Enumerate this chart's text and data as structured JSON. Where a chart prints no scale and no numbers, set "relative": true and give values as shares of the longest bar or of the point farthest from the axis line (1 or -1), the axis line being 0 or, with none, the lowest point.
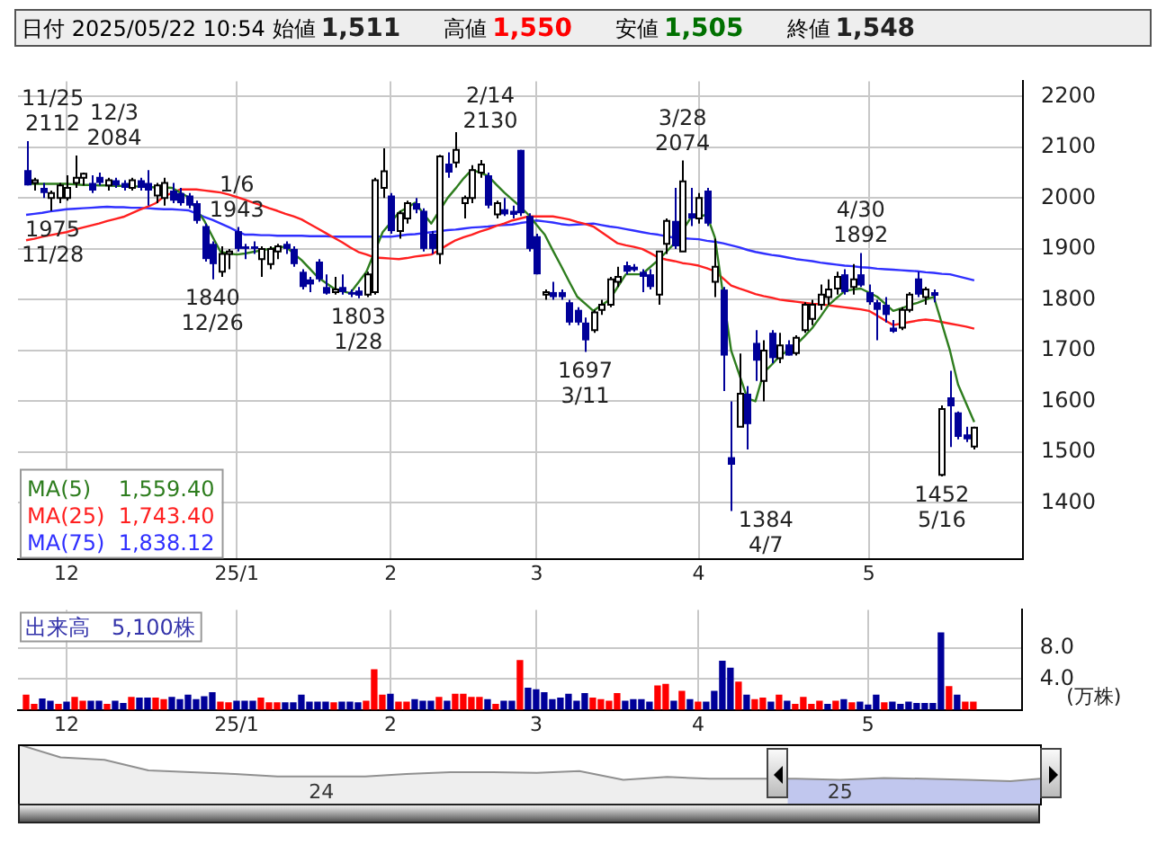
{
  "chart_data": [
    {
      "type": "candlestick",
      "title": "日付 2025/05/22 10:54",
      "annotations": [
        "始値 1,511",
        "高値 1,550",
        "安値 1,505",
        "終値 1,548"
      ],
      "categories": [
        null,
        null,
        null,
        null,
        null,
        "12",
        null,
        null,
        null,
        null,
        null,
        null,
        null,
        null,
        null,
        null,
        null,
        null,
        null,
        null,
        null,
        null,
        null,
        null,
        null,
        null,
        "25/1",
        null,
        null,
        null,
        null,
        null,
        null,
        null,
        null,
        null,
        null,
        null,
        null,
        null,
        null,
        null,
        null,
        null,
        null,
        "2",
        null,
        null,
        null,
        null,
        null,
        null,
        null,
        null,
        null,
        null,
        null,
        null,
        null,
        null,
        null,
        null,
        null,
        "3",
        null,
        null,
        null,
        null,
        null,
        null,
        null,
        null,
        null,
        null,
        null,
        null,
        null,
        null,
        null,
        null,
        null,
        null,
        null,
        "4",
        null,
        null,
        null,
        null,
        null,
        null,
        null,
        null,
        null,
        null,
        null,
        null,
        null,
        null,
        null,
        null,
        null,
        null,
        null,
        null,
        "5",
        null,
        null,
        null,
        null,
        null,
        null,
        null,
        null,
        null,
        null,
        null,
        null,
        null
      ],
      "series": [
        {
          "type": "candlestick",
          "colors": [
            "#000099",
            "#ffffff",
            "#000099",
            "#ffffff",
            "#ffffff",
            "#ffffff",
            "#ffffff",
            "#ffffff",
            "#000099",
            "#000099",
            "#ffffff",
            "#000099",
            "#000099",
            "#ffffff",
            "#000099",
            "#000099",
            "#ffffff",
            "#ffffff",
            "#000099",
            "#000099",
            "#000099",
            "#000099",
            "#000099",
            "#000099",
            "#ffffff",
            "#ffffff",
            "#000099",
            "#000099",
            "#000099",
            "#ffffff",
            "#ffffff",
            "#ffffff",
            "#000099",
            "#000099",
            "#000099",
            "#000099",
            "#000099",
            "#000099",
            "#ffffff",
            "#000099",
            "#000099",
            "#000099",
            "#ffffff",
            "#ffffff",
            "#ffffff",
            "#000099",
            "#ffffff",
            "#ffffff",
            "#000099",
            "#000099",
            "#000099",
            "#ffffff",
            "#000099",
            "#ffffff",
            "#ffffff",
            "#ffffff",
            "#ffffff",
            "#000099",
            "#ffffff",
            "#000099",
            "#000099",
            "#000099",
            "#000099",
            "#000099",
            "#ffffff",
            "#000099",
            "#000099",
            "#000099",
            "#000099",
            "#000099",
            "#ffffff",
            "#ffffff",
            "#ffffff",
            "#ffffff",
            "#000099",
            "#000099",
            "#000099",
            "#000099",
            "#ffffff",
            "#ffffff",
            "#000099",
            "#ffffff",
            "#000099",
            "#ffffff",
            "#000099",
            "#ffffff",
            "#000099",
            "#000099",
            "#ffffff",
            "#000099",
            "#000099",
            "#ffffff",
            "#000099",
            "#ffffff",
            "#000099",
            "#ffffff",
            "#ffffff",
            "#ffffff",
            "#ffffff",
            "#ffffff",
            "#ffffff",
            "#000099",
            "#ffffff",
            "#000099",
            "#000099",
            "#000099",
            "#000099",
            "#000099",
            "#ffffff",
            "#ffffff",
            "#000099",
            "#ffffff",
            "#000099",
            "#ffffff",
            "#000099",
            "#000099",
            "#000099",
            "#ffffff"
          ],
          "value_labels": [
            "11/25\n2112",
            null,
            null,
            "1975\n11/28",
            null,
            null,
            "12/3\n2084",
            null,
            null,
            null,
            null,
            null,
            null,
            null,
            null,
            null,
            null,
            null,
            null,
            null,
            null,
            null,
            null,
            "1840\n12/26",
            null,
            null,
            "1/6\n1943",
            null,
            null,
            null,
            null,
            null,
            null,
            null,
            null,
            null,
            null,
            null,
            null,
            null,
            null,
            "1803\n1/28",
            null,
            null,
            null,
            null,
            null,
            null,
            null,
            null,
            null,
            null,
            null,
            "2/14\n2130",
            null,
            null,
            null,
            null,
            null,
            null,
            null,
            null,
            null,
            null,
            null,
            null,
            null,
            null,
            null,
            "1697\n3/11",
            null,
            null,
            null,
            null,
            null,
            null,
            null,
            null,
            null,
            null,
            null,
            "3/28\n2074",
            null,
            null,
            null,
            null,
            null,
            "1384\n4/7",
            null,
            null,
            null,
            null,
            null,
            null,
            null,
            null,
            null,
            null,
            null,
            null,
            null,
            null,
            null,
            "4/30\n1892",
            null,
            null,
            null,
            null,
            null,
            null,
            null,
            null,
            null,
            "1452\n5/16",
            null,
            null,
            null,
            null
          ],
          "ohlc": [
            [
              2055,
              2112,
              2025,
              2025
            ],
            [
              2030,
              2040,
              2015,
              2035
            ],
            [
              2020,
              2030,
              2000,
              2010
            ],
            [
              2000,
              2015,
              1975,
              2010
            ],
            [
              2000,
              2030,
              1990,
              2025
            ],
            [
              2000,
              2045,
              1995,
              2020
            ],
            [
              2030,
              2084,
              2020,
              2040
            ],
            [
              2040,
              2050,
              2025,
              2048
            ],
            [
              2030,
              2045,
              2010,
              2015
            ],
            [
              2042,
              2050,
              2025,
              2030
            ],
            [
              2025,
              2040,
              2015,
              2035
            ],
            [
              2035,
              2040,
              2020,
              2025
            ],
            [
              2030,
              2035,
              2015,
              2020
            ],
            [
              2020,
              2040,
              2015,
              2035
            ],
            [
              2035,
              2040,
              2015,
              2020
            ],
            [
              2030,
              2055,
              1985,
              2015
            ],
            [
              2005,
              2030,
              1990,
              2025
            ],
            [
              2000,
              2040,
              1985,
              2030
            ],
            [
              2015,
              2030,
              1990,
              1995
            ],
            [
              2010,
              2020,
              1985,
              1990
            ],
            [
              2005,
              2010,
              1980,
              1985
            ],
            [
              1990,
              1995,
              1950,
              1955
            ],
            [
              1945,
              1950,
              1875,
              1880
            ],
            [
              1910,
              1915,
              1840,
              1870
            ],
            [
              1855,
              1905,
              1845,
              1890
            ],
            [
              1890,
              1900,
              1860,
              1895
            ],
            [
              1935,
              1943,
              1895,
              1900
            ],
            [
              1905,
              1910,
              1880,
              1900
            ],
            [
              1905,
              1915,
              1890,
              1900
            ],
            [
              1880,
              1905,
              1845,
              1900
            ],
            [
              1870,
              1905,
              1860,
              1900
            ],
            [
              1895,
              1910,
              1880,
              1905
            ],
            [
              1910,
              1915,
              1890,
              1900
            ],
            [
              1900,
              1905,
              1865,
              1870
            ],
            [
              1855,
              1860,
              1820,
              1825
            ],
            [
              1840,
              1845,
              1815,
              1830
            ],
            [
              1875,
              1880,
              1835,
              1840
            ],
            [
              1825,
              1850,
              1810,
              1812
            ],
            [
              1815,
              1845,
              1810,
              1820
            ],
            [
              1825,
              1850,
              1810,
              1815
            ],
            [
              1815,
              1820,
              1805,
              1810
            ],
            [
              1818,
              1825,
              1803,
              1808
            ],
            [
              1810,
              1855,
              1805,
              1850
            ],
            [
              1815,
              2040,
              1810,
              2035
            ],
            [
              2020,
              2098,
              2000,
              2053
            ],
            [
              2005,
              2010,
              1930,
              1935
            ],
            [
              1935,
              1975,
              1920,
              1970
            ],
            [
              1960,
              1995,
              1950,
              1990
            ],
            [
              1990,
              2000,
              1970,
              1977
            ],
            [
              1975,
              1980,
              1895,
              1900
            ],
            [
              1930,
              1935,
              1890,
              1900
            ],
            [
              1890,
              2085,
              1870,
              2082
            ],
            [
              2068,
              2090,
              2040,
              2050
            ],
            [
              2070,
              2130,
              2060,
              2095
            ],
            [
              1990,
              2005,
              1960,
              2000
            ],
            [
              2000,
              2065,
              1990,
              2055
            ],
            [
              2050,
              2075,
              2040,
              2066
            ],
            [
              2045,
              2050,
              1980,
              1985
            ],
            [
              1968,
              1995,
              1960,
              1990
            ],
            [
              1978,
              2000,
              1965,
              1968
            ],
            [
              1975,
              1985,
              1960,
              1967
            ],
            [
              2095,
              2095,
              1965,
              1970
            ],
            [
              1965,
              1970,
              1895,
              1900
            ],
            [
              1925,
              1930,
              1850,
              1850
            ],
            [
              1810,
              1820,
              1800,
              1815
            ],
            [
              1815,
              1835,
              1800,
              1805
            ],
            [
              1815,
              1820,
              1800,
              1805
            ],
            [
              1795,
              1800,
              1750,
              1755
            ],
            [
              1780,
              1785,
              1750,
              1755
            ],
            [
              1755,
              1765,
              1697,
              1720
            ],
            [
              1740,
              1780,
              1735,
              1775
            ],
            [
              1780,
              1800,
              1770,
              1790
            ],
            [
              1790,
              1845,
              1785,
              1840
            ],
            [
              1835,
              1865,
              1825,
              1845
            ],
            [
              1868,
              1875,
              1850,
              1855
            ],
            [
              1865,
              1870,
              1855,
              1858
            ],
            [
              1855,
              1860,
              1815,
              1845
            ],
            [
              1850,
              1860,
              1820,
              1825
            ],
            [
              1810,
              1895,
              1790,
              1895
            ],
            [
              1910,
              1960,
              1890,
              1955
            ],
            [
              1955,
              2020,
              1900,
              1905
            ],
            [
              1895,
              2074,
              1895,
              2033
            ],
            [
              1970,
              2020,
              1945,
              1960
            ],
            [
              1960,
              2010,
              1950,
              2000
            ],
            [
              2015,
              2020,
              1945,
              1950
            ],
            [
              1835,
              1920,
              1805,
              1865
            ],
            [
              1820,
              1825,
              1620,
              1690
            ],
            [
              1490,
              1600,
              1384,
              1475
            ],
            [
              1550,
              1694,
              1550,
              1615
            ],
            [
              1615,
              1630,
              1505,
              1555
            ],
            [
              1715,
              1740,
              1640,
              1680
            ],
            [
              1640,
              1720,
              1600,
              1700
            ],
            [
              1735,
              1740,
              1675,
              1685
            ],
            [
              1685,
              1735,
              1675,
              1710
            ],
            [
              1712,
              1720,
              1690,
              1690
            ],
            [
              1695,
              1730,
              1690,
              1725
            ],
            [
              1740,
              1795,
              1735,
              1790
            ],
            [
              1762,
              1800,
              1750,
              1790
            ],
            [
              1790,
              1830,
              1780,
              1810
            ],
            [
              1805,
              1840,
              1790,
              1820
            ],
            [
              1822,
              1855,
              1810,
              1845
            ],
            [
              1850,
              1860,
              1810,
              1815
            ],
            [
              1825,
              1870,
              1810,
              1840
            ],
            [
              1850,
              1892,
              1825,
              1828
            ],
            [
              1815,
              1830,
              1790,
              1795
            ],
            [
              1795,
              1800,
              1720,
              1780
            ],
            [
              1790,
              1805,
              1755,
              1770
            ],
            [
              1745,
              1760,
              1735,
              1737
            ],
            [
              1745,
              1785,
              1740,
              1780
            ],
            [
              1780,
              1815,
              1775,
              1810
            ],
            [
              1842,
              1855,
              1805,
              1810
            ],
            [
              1805,
              1825,
              1790,
              1820
            ],
            [
              1815,
              1820,
              1795,
              1808
            ],
            [
              1455,
              1592,
              1452,
              1585
            ],
            [
              1608,
              1660,
              1510,
              1590
            ],
            [
              1578,
              1580,
              1525,
              1530
            ],
            [
              1535,
              1550,
              1520,
              1525
            ],
            [
              1511,
              1550,
              1505,
              1548
            ]
          ]
        },
        {
          "type": "line",
          "name": "MA(5)    1,559.40",
          "color": "#2e7d1e",
          "values": [
            2028,
            2028,
            2028,
            2028,
            2028,
            2028,
            2027,
            2026,
            2026,
            2025,
            2025,
            2024,
            2024,
            2023,
            2023,
            2022,
            2021,
            2021,
            2020,
            2011,
            2002,
            1978,
            1955,
            1924,
            1894,
            1891,
            1889,
            1891,
            1894,
            1897,
            1900,
            1902,
            1905,
            1891,
            1878,
            1861,
            1844,
            1833,
            1822,
            1817,
            1813,
            1834,
            1855,
            1894,
            1933,
            1952,
            1972,
            1981,
            1991,
            1970,
            1950,
            1975,
            2000,
            2019,
            2039,
            2056,
            2050,
            2044,
            2027,
            2011,
            1997,
            1983,
            1967,
            1947,
            1928,
            1897,
            1867,
            1836,
            1806,
            1792,
            1778,
            1789,
            1800,
            1825,
            1850,
            1850,
            1850,
            1864,
            1878,
            1894,
            1911,
            1936,
            1961,
            1964,
            1967,
            1922,
            1811,
            1700,
            1653,
            1606,
            1600,
            1656,
            1672,
            1689,
            1700,
            1711,
            1727,
            1744,
            1766,
            1789,
            1803,
            1817,
            1820,
            1822,
            1814,
            1806,
            1792,
            1778,
            1783,
            1789,
            1794,
            1800,
            1806,
            1753,
            1700,
            1633,
            1596,
            1559
          ]
        },
        {
          "type": "line",
          "name": "MA(25)  1,743.40",
          "color": "#ff2020",
          "values": [
            1917,
            1920,
            1924,
            1927,
            1930,
            1933,
            1938,
            1942,
            1946,
            1950,
            1955,
            1959,
            1963,
            1970,
            1977,
            1983,
            1990,
            2003,
            2010,
            2017,
            2017,
            2017,
            2015,
            2013,
            2011,
            2007,
            2002,
            1997,
            1991,
            1986,
            1980,
            1975,
            1969,
            1964,
            1958,
            1949,
            1940,
            1931,
            1922,
            1913,
            1903,
            1894,
            1889,
            1883,
            1882,
            1881,
            1880,
            1882,
            1885,
            1887,
            1889,
            1898,
            1908,
            1917,
            1923,
            1928,
            1934,
            1939,
            1945,
            1950,
            1956,
            1960,
            1964,
            1964,
            1964,
            1964,
            1961,
            1958,
            1953,
            1949,
            1944,
            1933,
            1922,
            1911,
            1907,
            1904,
            1900,
            1892,
            1883,
            1879,
            1876,
            1872,
            1870,
            1867,
            1862,
            1856,
            1842,
            1828,
            1822,
            1817,
            1811,
            1807,
            1804,
            1800,
            1798,
            1796,
            1794,
            1792,
            1791,
            1789,
            1787,
            1785,
            1783,
            1781,
            1778,
            1769,
            1759,
            1750,
            1753,
            1756,
            1759,
            1761,
            1759,
            1756,
            1753,
            1750,
            1747,
            1743
          ]
        },
        {
          "type": "line",
          "name": "MA(75)  1,838.12",
          "color": "#3030ff",
          "values": [
            1967,
            1969,
            1971,
            1974,
            1976,
            1978,
            1979,
            1980,
            1981,
            1982,
            1983,
            1982,
            1982,
            1981,
            1981,
            1980,
            1979,
            1978,
            1978,
            1977,
            1976,
            1970,
            1963,
            1957,
            1950,
            1943,
            1935,
            1928,
            1928,
            1927,
            1927,
            1926,
            1926,
            1926,
            1926,
            1925,
            1925,
            1925,
            1924,
            1924,
            1924,
            1924,
            1924,
            1924,
            1924,
            1924,
            1926,
            1928,
            1929,
            1931,
            1933,
            1935,
            1937,
            1938,
            1940,
            1942,
            1943,
            1944,
            1946,
            1947,
            1948,
            1951,
            1953,
            1956,
            1954,
            1952,
            1949,
            1947,
            1948,
            1949,
            1950,
            1947,
            1944,
            1942,
            1939,
            1936,
            1933,
            1930,
            1928,
            1925,
            1922,
            1921,
            1920,
            1919,
            1916,
            1914,
            1911,
            1907,
            1903,
            1898,
            1894,
            1891,
            1888,
            1886,
            1883,
            1880,
            1878,
            1876,
            1873,
            1871,
            1869,
            1867,
            1866,
            1864,
            1863,
            1861,
            1860,
            1859,
            1858,
            1857,
            1856,
            1854,
            1853,
            1851,
            1850,
            1846,
            1842,
            1838
          ]
        }
      ],
      "ylim": [
        1290,
        2230
      ],
      "yticks": [
        1400,
        1500,
        1600,
        1700,
        1800,
        1900,
        2000,
        2100,
        2200
      ],
      "grid": true,
      "legend": "bottom left"
    },
    {
      "type": "bar",
      "title": "出来高　5,100株",
      "ylabel": "(万株)",
      "categories": [
        null,
        null,
        null,
        null,
        null,
        "12",
        null,
        null,
        null,
        null,
        null,
        null,
        null,
        null,
        null,
        null,
        null,
        null,
        null,
        null,
        null,
        null,
        null,
        null,
        null,
        null,
        "25/1",
        null,
        null,
        null,
        null,
        null,
        null,
        null,
        null,
        null,
        null,
        null,
        null,
        null,
        null,
        null,
        null,
        null,
        null,
        "2",
        null,
        null,
        null,
        null,
        null,
        null,
        null,
        null,
        null,
        null,
        null,
        null,
        null,
        null,
        null,
        null,
        null,
        "3",
        null,
        null,
        null,
        null,
        null,
        null,
        null,
        null,
        null,
        null,
        null,
        null,
        null,
        null,
        null,
        null,
        null,
        null,
        null,
        "4",
        null,
        null,
        null,
        null,
        null,
        null,
        null,
        null,
        null,
        null,
        null,
        null,
        null,
        null,
        null,
        null,
        null,
        null,
        null,
        null,
        "5",
        null,
        null,
        null,
        null,
        null,
        null,
        null,
        null,
        null,
        null,
        null,
        null,
        null
      ],
      "values": [
        1.9,
        0.7,
        1.4,
        1.1,
        0.7,
        1.0,
        1.6,
        1.1,
        1.1,
        1.1,
        0.7,
        1.1,
        0.8,
        1.6,
        1.5,
        1.5,
        1.5,
        1.3,
        1.6,
        1.3,
        1.9,
        1.3,
        1.7,
        2.2,
        1.0,
        0.9,
        1.1,
        1.1,
        1.1,
        1.5,
        0.9,
        0.9,
        0.9,
        0.9,
        1.9,
        1.0,
        1.0,
        1.0,
        0.9,
        1.0,
        1.0,
        0.9,
        1.1,
        5.2,
        1.9,
        2.0,
        1.0,
        1.0,
        1.3,
        1.1,
        1.1,
        1.6,
        1.1,
        2.0,
        2.0,
        1.6,
        1.6,
        1.3,
        0.7,
        1.1,
        1.1,
        6.4,
        2.8,
        2.6,
        2.2,
        1.3,
        1.5,
        2.0,
        1.1,
        2.1,
        1.5,
        1.3,
        1.1,
        2.1,
        1.1,
        1.3,
        1.3,
        1.0,
        3.1,
        3.3,
        1.1,
        2.4,
        1.3,
        1.0,
        1.0,
        2.4,
        6.3,
        5.4,
        3.6,
        1.9,
        1.3,
        1.5,
        1.0,
        1.9,
        1.1,
        0.7,
        1.6,
        0.7,
        1.1,
        0.7,
        1.1,
        1.3,
        0.9,
        1.0,
        0.6,
        1.9,
        0.9,
        1.0,
        0.7,
        1.0,
        0.8,
        0.8,
        0.8,
        10.0,
        3.0,
        1.9,
        1.0,
        1.0
      ],
      "colors": [
        "#ff0000",
        "#ff0000",
        "#000099",
        "#000099",
        "#ff0000",
        "#000099",
        "#ff0000",
        "#ff0000",
        "#000099",
        "#000099",
        "#ff0000",
        "#000099",
        "#000099",
        "#ff0000",
        "#000099",
        "#000099",
        "#ff0000",
        "#ff0000",
        "#000099",
        "#000099",
        "#000099",
        "#000099",
        "#000099",
        "#000099",
        "#ff0000",
        "#ff0000",
        "#000099",
        "#000099",
        "#000099",
        "#ff0000",
        "#ff0000",
        "#ff0000",
        "#000099",
        "#000099",
        "#000099",
        "#000099",
        "#000099",
        "#000099",
        "#ff0000",
        "#000099",
        "#000099",
        "#000099",
        "#ff0000",
        "#ff0000",
        "#ff0000",
        "#000099",
        "#ff0000",
        "#ff0000",
        "#000099",
        "#000099",
        "#000099",
        "#ff0000",
        "#000099",
        "#ff0000",
        "#ff0000",
        "#ff0000",
        "#ff0000",
        "#000099",
        "#ff0000",
        "#000099",
        "#000099",
        "#ff0000",
        "#000099",
        "#000099",
        "#000099",
        "#000099",
        "#000099",
        "#000099",
        "#000099",
        "#000099",
        "#ff0000",
        "#ff0000",
        "#ff0000",
        "#ff0000",
        "#000099",
        "#000099",
        "#000099",
        "#000099",
        "#ff0000",
        "#ff0000",
        "#000099",
        "#ff0000",
        "#000099",
        "#ff0000",
        "#000099",
        "#000099",
        "#000099",
        "#000099",
        "#ff0000",
        "#000099",
        "#ff0000",
        "#ff0000",
        "#000099",
        "#ff0000",
        "#000099",
        "#ff0000",
        "#ff0000",
        "#ff0000",
        "#ff0000",
        "#000099",
        "#ff0000",
        "#000099",
        "#ff0000",
        "#000099",
        "#000099",
        "#000099",
        "#ff0000",
        "#000099",
        "#000099",
        "#000099",
        "#000099",
        "#000099",
        "#000099",
        "#000099",
        "#ff0000",
        "#000099",
        "#ff0000",
        "#ff0000"
      ],
      "ylim": [
        0,
        13
      ],
      "yticks": [
        {
          "value": 4,
          "label": "4.0"
        },
        {
          "value": 8,
          "label": "8.0"
        }
      ],
      "grid": true
    },
    {
      "type": "area",
      "relative": true,
      "color": "#909090",
      "tick_labels": "x",
      "x": [
        "2023-06",
        "2023-07",
        "2023-08",
        "2023-09",
        "2023-10",
        "2023-11",
        "2023-12",
        "2024-01",
        "2024-02",
        "2024-03",
        "2024-04",
        "2024-05",
        "2024-06",
        "2024-07",
        "2024-08",
        "2024-09",
        "2024-10",
        "2024-11",
        "2024-12",
        "2025-01",
        "2025-02",
        "2025-03",
        "2025-04",
        "2025-05",
        "2025-05-22"
      ],
      "values": [
        1.0,
        0.78,
        0.74,
        0.56,
        0.53,
        0.5,
        0.46,
        0.46,
        0.46,
        0.5,
        0.53,
        0.53,
        0.52,
        0.55,
        0.4,
        0.45,
        0.42,
        0.42,
        0.42,
        0.4,
        0.43,
        0.42,
        0.4,
        0.38,
        0.42
      ],
      "xlim": [
        "2023-06",
        "2025-05-22"
      ],
      "xticks": [
        {
          "value": "2024-01-01",
          "label": "24"
        },
        {
          "value": "2025-01-01",
          "label": "25"
        }
      ],
      "bands": [
        {
          "axis": "x",
          "from": "2024-11-25",
          "to": "2025-05-22",
          "color": "#aab4ff"
        }
      ]
    }
  ]
}
